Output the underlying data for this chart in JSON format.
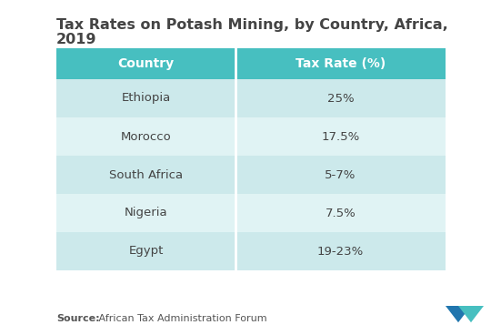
{
  "title_line1": "Tax Rates on Potash Mining, by Country, Africa,",
  "title_line2": "2019",
  "title_fontsize": 11.5,
  "headers": [
    "Country",
    "Tax Rate (%)"
  ],
  "rows": [
    [
      "Ethiopia",
      "25%"
    ],
    [
      "Morocco",
      "17.5%"
    ],
    [
      "South Africa",
      "5-7%"
    ],
    [
      "Nigeria",
      "7.5%"
    ],
    [
      "Egypt",
      "19-23%"
    ]
  ],
  "header_bg_color": "#47bfc0",
  "header_text_color": "#ffffff",
  "row_bg_even": "#cce9eb",
  "row_bg_odd": "#e0f3f4",
  "row_text_color": "#444444",
  "source_bold": "Source:",
  "source_normal": " African Tax Administration Forum",
  "background_color": "#ffffff",
  "logo_color_dark": "#2176ae",
  "logo_color_light": "#47bfc0"
}
